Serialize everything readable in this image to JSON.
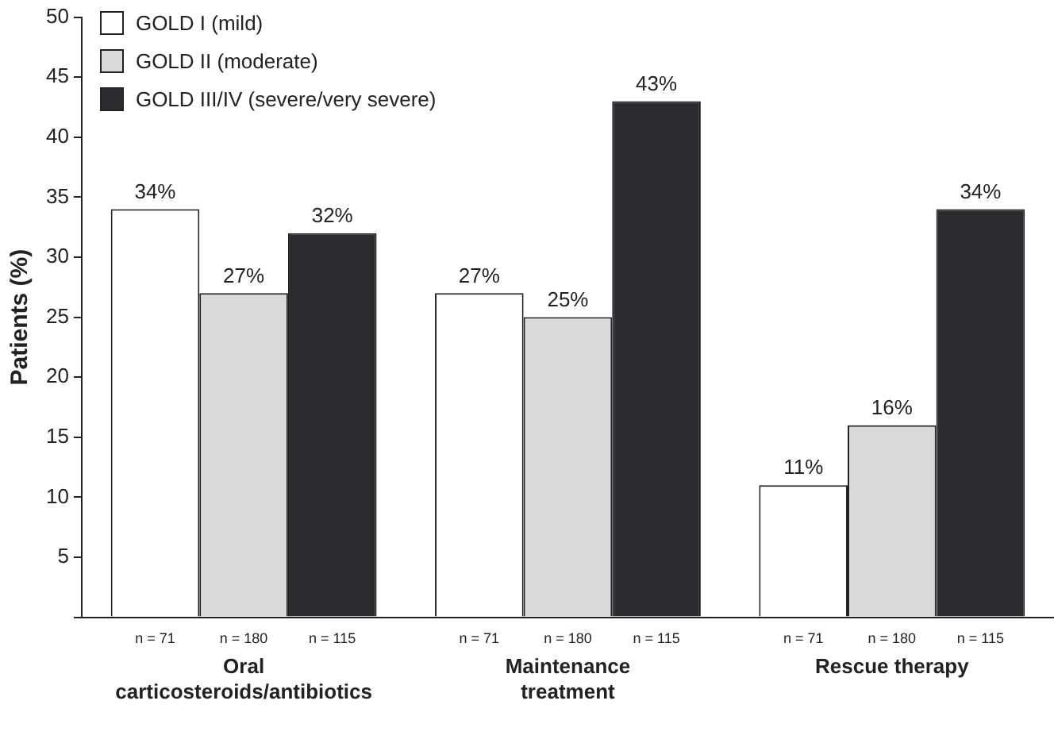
{
  "chart_data": {
    "type": "bar",
    "ylabel": "Patients (%)",
    "categories": [
      "Oral\ncarticosteroids/antibiotics",
      "Maintenance\ntreatment",
      "Rescue therapy"
    ],
    "series": [
      {
        "name": "GOLD I (mild)",
        "color": "#ffffff",
        "values": [
          34,
          27,
          11
        ],
        "value_labels": [
          "34%",
          "27%",
          "11%"
        ]
      },
      {
        "name": "GOLD II (moderate)",
        "color": "#d9d9d9",
        "values": [
          27,
          25,
          16
        ],
        "value_labels": [
          "27%",
          "25%",
          "16%"
        ]
      },
      {
        "name": "GOLD III/IV (severe/very severe)",
        "color": "#2b2b30",
        "values": [
          32,
          43,
          34
        ],
        "value_labels": [
          "32%",
          "43%",
          "34%"
        ]
      }
    ],
    "ylim": [
      0,
      50
    ],
    "yticks": [
      {
        "value": 0,
        "label": null
      },
      5,
      10,
      15,
      20,
      25,
      30,
      35,
      40,
      45,
      50
    ],
    "grid": false,
    "legend": "top left",
    "annotations": [
      "n = 71",
      "n = 180",
      "n = 115",
      "n = 71",
      "n = 180",
      "n = 115",
      "n = 71",
      "n = 180",
      "n = 115"
    ]
  }
}
